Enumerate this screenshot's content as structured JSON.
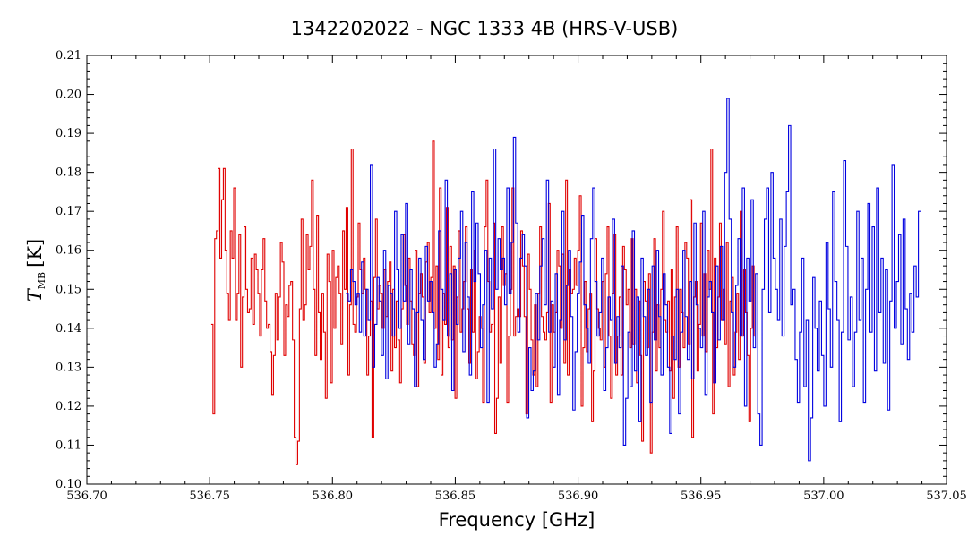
{
  "chart_data": {
    "type": "line",
    "title": "1342202022 - NGC 1333 4B (HRS-V-USB)",
    "xlabel": "Frequency [GHz]",
    "ylabel_main": "T",
    "ylabel_sub": "MB",
    "ylabel_unit": "[K]",
    "xlim": [
      536.7,
      537.05
    ],
    "ylim": [
      0.1,
      0.21
    ],
    "x_ticks": [
      "536.70",
      "536.75",
      "536.80",
      "536.85",
      "536.90",
      "536.95",
      "537.00",
      "537.05"
    ],
    "y_ticks": [
      "0.10",
      "0.11",
      "0.12",
      "0.13",
      "0.14",
      "0.15",
      "0.16",
      "0.17",
      "0.18",
      "0.19",
      "0.20",
      "0.21"
    ],
    "grid": false,
    "series": [
      {
        "color": "#e00000",
        "x_start": 536.751,
        "x_end": 536.972,
        "values": [
          0.141,
          0.118,
          0.163,
          0.165,
          0.181,
          0.158,
          0.173,
          0.181,
          0.16,
          0.149,
          0.142,
          0.165,
          0.158,
          0.176,
          0.142,
          0.149,
          0.164,
          0.13,
          0.148,
          0.166,
          0.15,
          0.144,
          0.145,
          0.158,
          0.141,
          0.159,
          0.155,
          0.149,
          0.138,
          0.155,
          0.163,
          0.147,
          0.14,
          0.141,
          0.134,
          0.123,
          0.133,
          0.149,
          0.137,
          0.148,
          0.162,
          0.157,
          0.133,
          0.146,
          0.143,
          0.151,
          0.152,
          0.137,
          0.112,
          0.105,
          0.111,
          0.145,
          0.168,
          0.142,
          0.146,
          0.164,
          0.155,
          0.161,
          0.178,
          0.15,
          0.133,
          0.169,
          0.144,
          0.132,
          0.149,
          0.139,
          0.122,
          0.159,
          0.152,
          0.126,
          0.16,
          0.14,
          0.153,
          0.156,
          0.149,
          0.136,
          0.165,
          0.15,
          0.171,
          0.128,
          0.146,
          0.186,
          0.141,
          0.139,
          0.148,
          0.167,
          0.155,
          0.149,
          0.158,
          0.15,
          0.128,
          0.138,
          0.147,
          0.112,
          0.153,
          0.168,
          0.145,
          0.151,
          0.149,
          0.14,
          0.155,
          0.143,
          0.152,
          0.157,
          0.129,
          0.15,
          0.135,
          0.147,
          0.137,
          0.126,
          0.145,
          0.164,
          0.151,
          0.141,
          0.158,
          0.147,
          0.136,
          0.133,
          0.16,
          0.125,
          0.149,
          0.154,
          0.148,
          0.131,
          0.157,
          0.162,
          0.144,
          0.153,
          0.188,
          0.14,
          0.156,
          0.132,
          0.176,
          0.128,
          0.149,
          0.141,
          0.171,
          0.135,
          0.161,
          0.137,
          0.156,
          0.122,
          0.148,
          0.165,
          0.139,
          0.145,
          0.152,
          0.166,
          0.145,
          0.131,
          0.155,
          0.139,
          0.16,
          0.127,
          0.134,
          0.143,
          0.14,
          0.121,
          0.166,
          0.178,
          0.152,
          0.139,
          0.141,
          0.167,
          0.113,
          0.122,
          0.148,
          0.131,
          0.166,
          0.151,
          0.154,
          0.121,
          0.138,
          0.15,
          0.176,
          0.138,
          0.143,
          0.145,
          0.143,
          0.165,
          0.156,
          0.143,
          0.118,
          0.159,
          0.15,
          0.137,
          0.128,
          0.146,
          0.125,
          0.149,
          0.166,
          0.143,
          0.139,
          0.137,
          0.144,
          0.172,
          0.121,
          0.146,
          0.139,
          0.144,
          0.16,
          0.156,
          0.14,
          0.159,
          0.131,
          0.178,
          0.128,
          0.155,
          0.149,
          0.15,
          0.158,
          0.151,
          0.16,
          0.174,
          0.12,
          0.135,
          0.152,
          0.134,
          0.145,
          0.149,
          0.116,
          0.129,
          0.163,
          0.145,
          0.14,
          0.137,
          0.152,
          0.13,
          0.154,
          0.166,
          0.138,
          0.122,
          0.149,
          0.164,
          0.128,
          0.138,
          0.148,
          0.128,
          0.161,
          0.155,
          0.146,
          0.15,
          0.135,
          0.163,
          0.136,
          0.15,
          0.126,
          0.147,
          0.133,
          0.111,
          0.152,
          0.147,
          0.135,
          0.154,
          0.108,
          0.139,
          0.163,
          0.129,
          0.146,
          0.135,
          0.15,
          0.17,
          0.142,
          0.139,
          0.147,
          0.129,
          0.155,
          0.122,
          0.148,
          0.166,
          0.13,
          0.15,
          0.144,
          0.135,
          0.162,
          0.158,
          0.136,
          0.173,
          0.112,
          0.148,
          0.152,
          0.129,
          0.141,
          0.167,
          0.138,
          0.154,
          0.134,
          0.16,
          0.15,
          0.186,
          0.118,
          0.158,
          0.135,
          0.148,
          0.167,
          0.142,
          0.15,
          0.136,
          0.162,
          0.125,
          0.147,
          0.153,
          0.128,
          0.139,
          0.149,
          0.132,
          0.17,
          0.138,
          0.155,
          0.144,
          0.133,
          0.116,
          0.14,
          0.156,
          0.138
        ]
      },
      {
        "color": "#0000e0",
        "x_start": 536.806,
        "x_end": 537.039,
        "values": [
          0.149,
          0.147,
          0.155,
          0.152,
          0.146,
          0.149,
          0.139,
          0.157,
          0.138,
          0.15,
          0.142,
          0.182,
          0.13,
          0.141,
          0.153,
          0.147,
          0.133,
          0.16,
          0.127,
          0.151,
          0.149,
          0.138,
          0.17,
          0.155,
          0.14,
          0.164,
          0.147,
          0.172,
          0.136,
          0.155,
          0.145,
          0.125,
          0.144,
          0.158,
          0.142,
          0.132,
          0.161,
          0.147,
          0.152,
          0.144,
          0.13,
          0.136,
          0.165,
          0.15,
          0.142,
          0.178,
          0.138,
          0.154,
          0.124,
          0.155,
          0.141,
          0.158,
          0.17,
          0.134,
          0.162,
          0.148,
          0.128,
          0.175,
          0.152,
          0.167,
          0.154,
          0.135,
          0.146,
          0.16,
          0.121,
          0.158,
          0.145,
          0.186,
          0.15,
          0.163,
          0.155,
          0.158,
          0.146,
          0.176,
          0.149,
          0.162,
          0.189,
          0.167,
          0.139,
          0.158,
          0.164,
          0.156,
          0.117,
          0.135,
          0.124,
          0.129,
          0.149,
          0.137,
          0.156,
          0.163,
          0.146,
          0.178,
          0.139,
          0.147,
          0.13,
          0.154,
          0.123,
          0.142,
          0.17,
          0.137,
          0.151,
          0.16,
          0.143,
          0.119,
          0.134,
          0.149,
          0.157,
          0.169,
          0.146,
          0.14,
          0.131,
          0.163,
          0.176,
          0.152,
          0.138,
          0.144,
          0.158,
          0.124,
          0.135,
          0.148,
          0.142,
          0.168,
          0.131,
          0.143,
          0.135,
          0.156,
          0.11,
          0.122,
          0.139,
          0.125,
          0.165,
          0.129,
          0.148,
          0.116,
          0.158,
          0.143,
          0.133,
          0.15,
          0.121,
          0.156,
          0.137,
          0.16,
          0.143,
          0.128,
          0.154,
          0.146,
          0.13,
          0.113,
          0.138,
          0.132,
          0.15,
          0.118,
          0.139,
          0.16,
          0.143,
          0.132,
          0.152,
          0.127,
          0.167,
          0.146,
          0.14,
          0.135,
          0.17,
          0.123,
          0.148,
          0.152,
          0.144,
          0.126,
          0.156,
          0.137,
          0.161,
          0.142,
          0.18,
          0.199,
          0.168,
          0.144,
          0.13,
          0.151,
          0.163,
          0.138,
          0.176,
          0.12,
          0.158,
          0.147,
          0.173,
          0.135,
          0.154,
          0.118,
          0.11,
          0.15,
          0.168,
          0.176,
          0.144,
          0.18,
          0.158,
          0.15,
          0.142,
          0.168,
          0.138,
          0.161,
          0.175,
          0.192,
          0.146,
          0.15,
          0.132,
          0.121,
          0.139,
          0.158,
          0.125,
          0.142,
          0.106,
          0.117,
          0.153,
          0.14,
          0.129,
          0.147,
          0.133,
          0.12,
          0.162,
          0.145,
          0.13,
          0.175,
          0.152,
          0.142,
          0.116,
          0.139,
          0.183,
          0.161,
          0.137,
          0.148,
          0.125,
          0.139,
          0.17,
          0.142,
          0.158,
          0.121,
          0.15,
          0.172,
          0.139,
          0.166,
          0.129,
          0.176,
          0.144,
          0.158,
          0.131,
          0.155,
          0.119,
          0.147,
          0.182,
          0.14,
          0.152,
          0.164,
          0.136,
          0.168,
          0.145,
          0.132,
          0.149,
          0.139,
          0.156,
          0.148,
          0.17
        ]
      }
    ]
  }
}
